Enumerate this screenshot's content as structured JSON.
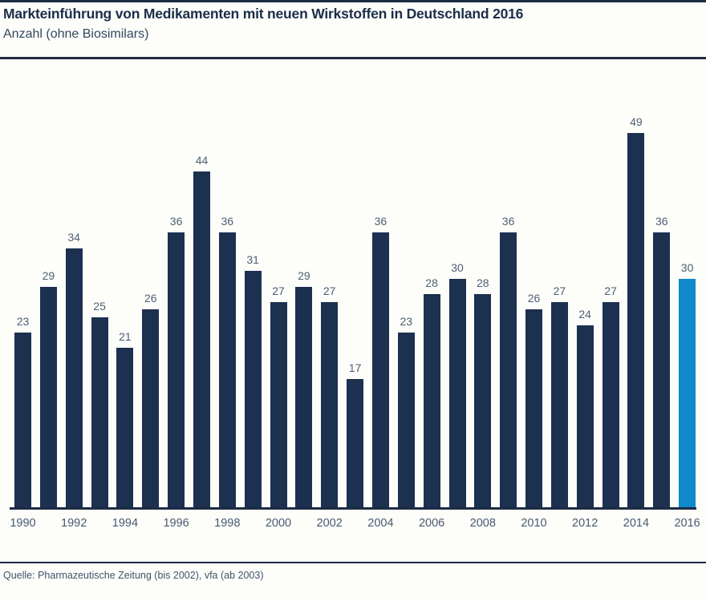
{
  "header": {
    "title": "Markteinführung von Medikamenten mit neuen Wirkstoffen in Deutschland 2016",
    "subtitle": "Anzahl (ohne Biosimilars)"
  },
  "footer": {
    "source": "Quelle: Pharmazeutische Zeitung (bis 2002), vfa (ab 2003)"
  },
  "colors": {
    "bar": "#1c3050",
    "highlight": "#0e8aca",
    "axis": "#1e2c42"
  },
  "chart_data": {
    "type": "bar",
    "title": "Markteinführung von Medikamenten mit neuen Wirkstoffen in Deutschland 2016",
    "subtitle": "Anzahl (ohne Biosimilars)",
    "xlabel": "",
    "ylabel": "Anzahl",
    "ylim": [
      0,
      58
    ],
    "grid": false,
    "legend": false,
    "categories": [
      1990,
      1991,
      1992,
      1993,
      1994,
      1995,
      1996,
      1997,
      1998,
      1999,
      2000,
      2001,
      2002,
      2003,
      2004,
      2005,
      2006,
      2007,
      2008,
      2009,
      2010,
      2011,
      2012,
      2013,
      2014,
      2015,
      2016
    ],
    "values": [
      23,
      29,
      34,
      25,
      21,
      26,
      36,
      44,
      36,
      31,
      27,
      29,
      27,
      17,
      36,
      23,
      28,
      30,
      28,
      36,
      26,
      27,
      24,
      27,
      49,
      36,
      30
    ],
    "highlight_category": 2016,
    "x_tick_labels": [
      "1990",
      "1992",
      "1994",
      "1996",
      "1998",
      "2000",
      "2002",
      "2004",
      "2006",
      "2008",
      "2010",
      "2012",
      "2014",
      "2016"
    ],
    "source": "Quelle: Pharmazeutische Zeitung (bis 2002), vfa (ab 2003)"
  }
}
